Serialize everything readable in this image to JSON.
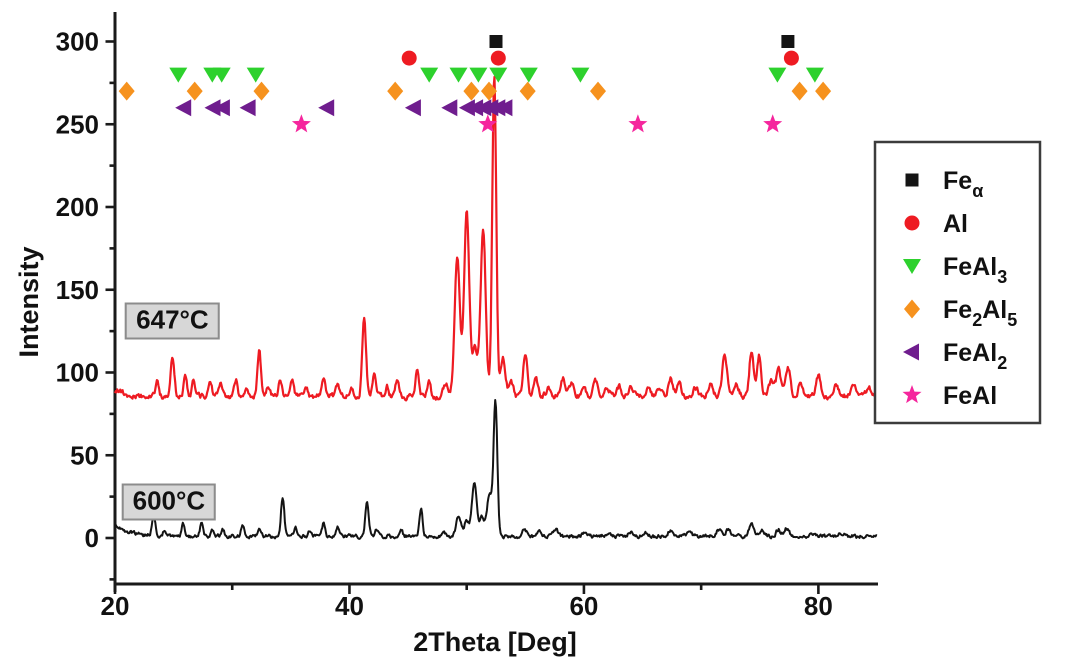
{
  "figure": {
    "background": "#ffffff",
    "axis_color": "#1a1a1a",
    "annotation_box_fill": "#d7d7d7",
    "annotation_box_border": "#8c8c8c",
    "legend_border": "#3c3c3c"
  },
  "chart_data": {
    "type": "line",
    "title": "",
    "xlabel": "2Theta [Deg]",
    "ylabel": "Intensity",
    "xlim": [
      20,
      85
    ],
    "ylim": [
      -28,
      310
    ],
    "xticks": [
      20,
      40,
      60,
      80
    ],
    "xminor": [
      30,
      50,
      70
    ],
    "yticks": [
      0,
      50,
      100,
      150,
      200,
      250,
      300
    ],
    "yminor_step": 25,
    "grid": false,
    "legend_position": "outside-right",
    "series": [
      {
        "name": "600C",
        "label": "600°C",
        "color": "#141414",
        "baseline": 1.0,
        "start_boost": 6.5,
        "noise": 1.1,
        "peaks": [
          [
            23.3,
            11,
            0.14
          ],
          [
            24.2,
            3,
            0.12
          ],
          [
            25.8,
            7,
            0.13
          ],
          [
            27.4,
            9,
            0.13
          ],
          [
            28.3,
            3,
            0.12
          ],
          [
            29.2,
            4,
            0.13
          ],
          [
            30.9,
            6,
            0.14
          ],
          [
            32.3,
            4,
            0.14
          ],
          [
            34.3,
            24,
            0.14
          ],
          [
            35.4,
            5,
            0.13
          ],
          [
            36.6,
            3,
            0.12
          ],
          [
            37.8,
            8,
            0.14
          ],
          [
            39.0,
            5,
            0.13
          ],
          [
            41.5,
            21,
            0.15
          ],
          [
            42.3,
            4,
            0.13
          ],
          [
            44.4,
            5,
            0.13
          ],
          [
            46.1,
            17,
            0.13
          ],
          [
            48.0,
            3,
            0.15
          ],
          [
            49.3,
            13,
            0.2
          ],
          [
            50.0,
            10,
            0.2
          ],
          [
            50.65,
            32,
            0.2
          ],
          [
            51.3,
            12,
            0.22
          ],
          [
            51.95,
            25,
            0.2
          ],
          [
            52.45,
            82,
            0.16
          ],
          [
            54.9,
            4,
            0.2
          ],
          [
            56.2,
            3,
            0.2
          ],
          [
            57.6,
            4,
            0.2
          ],
          [
            60.0,
            2,
            0.2
          ],
          [
            62.1,
            2,
            0.2
          ],
          [
            64.0,
            3,
            0.2
          ],
          [
            65.3,
            2,
            0.2
          ],
          [
            67.4,
            4,
            0.2
          ],
          [
            69.0,
            2,
            0.2
          ],
          [
            71.5,
            4,
            0.2
          ],
          [
            72.3,
            4,
            0.2
          ],
          [
            74.3,
            8,
            0.2
          ],
          [
            75.2,
            3,
            0.2
          ],
          [
            76.6,
            4,
            0.2
          ],
          [
            77.3,
            5,
            0.2
          ],
          [
            79.5,
            2,
            0.2
          ],
          [
            82.0,
            2,
            0.25
          ]
        ]
      },
      {
        "name": "647C",
        "label": "647°C",
        "color": "#ee1b22",
        "baseline": 85.5,
        "start_boost": 0,
        "noise": 1.6,
        "peaks": [
          [
            20.4,
            4,
            0.25
          ],
          [
            23.6,
            10,
            0.14
          ],
          [
            24.9,
            25,
            0.15
          ],
          [
            26.0,
            13,
            0.14
          ],
          [
            26.7,
            10,
            0.14
          ],
          [
            28.1,
            8,
            0.15
          ],
          [
            29.0,
            8,
            0.15
          ],
          [
            30.3,
            10,
            0.15
          ],
          [
            31.2,
            5,
            0.15
          ],
          [
            32.3,
            28,
            0.15
          ],
          [
            33.1,
            6,
            0.14
          ],
          [
            34.1,
            11,
            0.15
          ],
          [
            35.1,
            10,
            0.15
          ],
          [
            36.3,
            5,
            0.14
          ],
          [
            37.8,
            12,
            0.15
          ],
          [
            39.0,
            8,
            0.15
          ],
          [
            40.2,
            5,
            0.15
          ],
          [
            41.25,
            47,
            0.16
          ],
          [
            42.1,
            14,
            0.15
          ],
          [
            43.2,
            6,
            0.15
          ],
          [
            44.1,
            11,
            0.15
          ],
          [
            45.8,
            17,
            0.14
          ],
          [
            46.8,
            9,
            0.15
          ],
          [
            48.2,
            8,
            0.2
          ],
          [
            49.2,
            85,
            0.22
          ],
          [
            50.0,
            112,
            0.22
          ],
          [
            50.7,
            28,
            0.2
          ],
          [
            51.4,
            102,
            0.22
          ],
          [
            52.35,
            193,
            0.17
          ],
          [
            53.1,
            24,
            0.2
          ],
          [
            53.8,
            8,
            0.2
          ],
          [
            55.0,
            25,
            0.18
          ],
          [
            55.9,
            12,
            0.18
          ],
          [
            57.0,
            6,
            0.2
          ],
          [
            58.2,
            11,
            0.2
          ],
          [
            58.9,
            8,
            0.2
          ],
          [
            60.0,
            5,
            0.2
          ],
          [
            61.0,
            9,
            0.2
          ],
          [
            62.0,
            5,
            0.2
          ],
          [
            63.0,
            6,
            0.2
          ],
          [
            64.0,
            6,
            0.2
          ],
          [
            65.5,
            5,
            0.2
          ],
          [
            66.5,
            6,
            0.2
          ],
          [
            67.4,
            11,
            0.2
          ],
          [
            68.1,
            8,
            0.2
          ],
          [
            69.5,
            5,
            0.2
          ],
          [
            70.8,
            8,
            0.2
          ],
          [
            72.0,
            27,
            0.2
          ],
          [
            73.0,
            8,
            0.2
          ],
          [
            74.3,
            28,
            0.18
          ],
          [
            74.95,
            25,
            0.18
          ],
          [
            76.0,
            10,
            0.2
          ],
          [
            76.6,
            16,
            0.2
          ],
          [
            77.4,
            18,
            0.2
          ],
          [
            78.5,
            8,
            0.2
          ],
          [
            80.0,
            12,
            0.2
          ],
          [
            81.5,
            6,
            0.2
          ],
          [
            83.0,
            6,
            0.25
          ],
          [
            84.3,
            5,
            0.25
          ]
        ]
      }
    ],
    "phases": [
      {
        "id": "fe-alpha",
        "label_segments": [
          {
            "t": "Fe"
          },
          {
            "t": "α",
            "sub": true
          }
        ],
        "symbol": "square",
        "color": "#141414",
        "row_y": 300,
        "x": [
          52.5,
          77.4
        ]
      },
      {
        "id": "al",
        "label_segments": [
          {
            "t": "Al"
          }
        ],
        "symbol": "circle",
        "color": "#ee1b22",
        "row_y": 290,
        "x": [
          45.1,
          52.7,
          77.7
        ]
      },
      {
        "id": "feal3",
        "label_segments": [
          {
            "t": "FeAl"
          },
          {
            "t": "3",
            "sub": true
          }
        ],
        "symbol": "triangle-down",
        "color": "#2dd12d",
        "row_y": 280,
        "x": [
          25.4,
          28.3,
          29.1,
          32.0,
          46.8,
          49.3,
          51.0,
          52.7,
          55.3,
          59.7,
          76.5,
          79.7
        ]
      },
      {
        "id": "fe2al5",
        "label_segments": [
          {
            "t": "Fe"
          },
          {
            "t": "2",
            "sub": true
          },
          {
            "t": "Al"
          },
          {
            "t": "5",
            "sub": true
          }
        ],
        "symbol": "diamond",
        "color": "#f6921e",
        "row_y": 270,
        "x": [
          21.0,
          26.8,
          32.5,
          43.9,
          50.4,
          51.9,
          55.2,
          61.2,
          78.4,
          80.4
        ]
      },
      {
        "id": "feal2",
        "label_segments": [
          {
            "t": "FeAl"
          },
          {
            "t": "2",
            "sub": true
          }
        ],
        "symbol": "triangle-left",
        "color": "#6f1d8e",
        "row_y": 260,
        "x": [
          25.9,
          28.4,
          29.2,
          31.4,
          38.1,
          45.5,
          48.6,
          50.1,
          50.8,
          51.5,
          52.1,
          52.7,
          53.3
        ]
      },
      {
        "id": "feal",
        "label_segments": [
          {
            "t": "FeAl"
          }
        ],
        "symbol": "star",
        "color": "#f5269d",
        "row_y": 250,
        "x": [
          35.9,
          51.8,
          64.6,
          76.1
        ]
      }
    ],
    "annotations": [
      {
        "text": "647°C",
        "x": 24.9,
        "y": 131
      },
      {
        "text": "600°C",
        "x": 24.6,
        "y": 22
      }
    ]
  }
}
